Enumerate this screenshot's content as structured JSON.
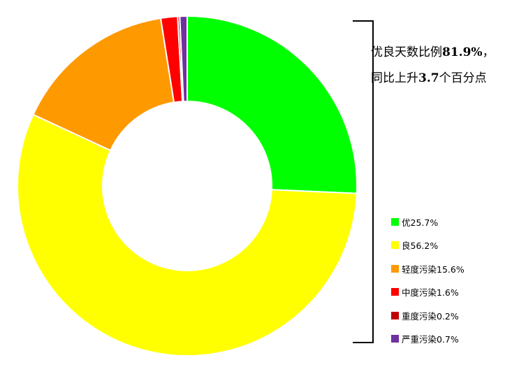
{
  "chart_data": {
    "type": "pie",
    "style": "donut",
    "title": "",
    "categories": [
      "优",
      "良",
      "轻度污染",
      "中度污染",
      "重度污染",
      "严重污染"
    ],
    "values": [
      25.7,
      56.2,
      15.6,
      1.6,
      0.2,
      0.7
    ],
    "unit": "%",
    "colors": [
      "#00ff00",
      "#ffff00",
      "#ff9900",
      "#ff0000",
      "#c00000",
      "#7030a0"
    ],
    "legend_labels": [
      "优25.7%",
      "良56.2%",
      "轻度污染15.6%",
      "中度污染1.6%",
      "重度污染0.2%",
      "严重污染0.7%"
    ],
    "legend_position": "right",
    "start_angle_deg": 0,
    "direction": "clockwise"
  },
  "annotation": {
    "line1_prefix": "优良天数比例",
    "line1_value": "81.9%",
    "line1_suffix": "，",
    "line2_prefix": "同比上升",
    "line2_value": "3.7",
    "line2_suffix": "个百分点"
  }
}
